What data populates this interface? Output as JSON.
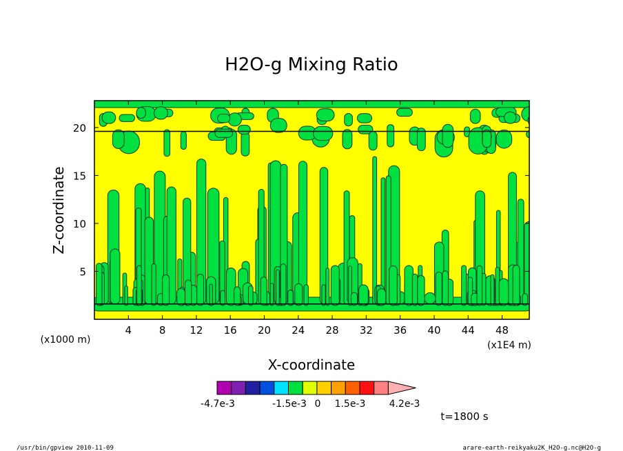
{
  "chart_data": {
    "type": "heatmap",
    "title": "H2O-g Mixing Ratio",
    "xlabel": "X-coordinate",
    "ylabel": "Z-coordinate",
    "x_unit_note": "(x1E4 m)",
    "z_unit_note": "(x1000 m)",
    "xlim": [
      0,
      51.2
    ],
    "ylim": [
      0,
      22.8
    ],
    "x_ticks": [
      "4",
      "8",
      "12",
      "16",
      "20",
      "24",
      "28",
      "32",
      "36",
      "40",
      "44",
      "48"
    ],
    "x_tick_values": [
      4,
      8,
      12,
      16,
      20,
      24,
      28,
      32,
      36,
      40,
      44,
      48
    ],
    "y_ticks": [
      "5",
      "10",
      "15",
      "20"
    ],
    "y_tick_values": [
      5,
      10,
      15,
      20
    ],
    "colorbar": {
      "colors": [
        "#b000b0",
        "#8020b0",
        "#2020a0",
        "#0050e0",
        "#00e0ff",
        "#00e040",
        "#e0ff00",
        "#ffd000",
        "#ffa000",
        "#ff6000",
        "#ff1010",
        "#ff8080",
        "#ffb0b0"
      ],
      "labels": [
        "-4.7e-3",
        "-1.5e-3",
        "0",
        "1.5e-3",
        "4.2e-3"
      ]
    },
    "time_label": "t=1800 s",
    "dominant_colors": {
      "positive": "#ffff00",
      "negative": "#00e040",
      "contour": "#000000"
    }
  },
  "footer": {
    "left": "/usr/bin/gpview   2010-11-09",
    "right": "arare-earth-reikyaku2K_H2O-g.nc@H2O-g"
  }
}
